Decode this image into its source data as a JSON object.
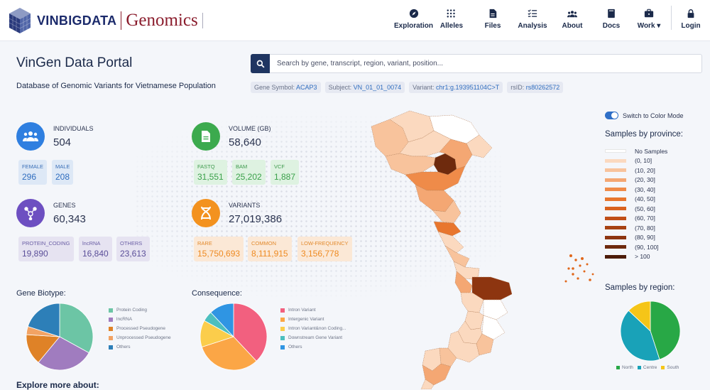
{
  "brand": {
    "vin": "VINBIGDATA",
    "genomics": "Genomics"
  },
  "nav": [
    {
      "label": "Exploration",
      "icon": "compass-icon"
    },
    {
      "label": "Alleles",
      "icon": "dots-grid-icon"
    },
    {
      "label": "Files",
      "icon": "file-icon"
    },
    {
      "label": "Analysis",
      "icon": "checklist-icon"
    },
    {
      "label": "About",
      "icon": "users-icon"
    },
    {
      "label": "Docs",
      "icon": "book-icon"
    },
    {
      "label": "Work ▾",
      "icon": "briefcase-icon"
    },
    {
      "label": "Login",
      "icon": "lock-icon"
    }
  ],
  "page": {
    "title": "VinGen Data Portal",
    "subtitle": "Database of Genomic Variants for Vietnamese Population"
  },
  "search": {
    "placeholder": "Search by gene, transcript, region, variant, position..."
  },
  "examples": [
    {
      "label": "Gene Symbol:",
      "value": "ACAP3"
    },
    {
      "label": "Subject:",
      "value": "VN_01_01_0074"
    },
    {
      "label": "Variant:",
      "value": "chr1:g.193951104C>T"
    },
    {
      "label": "rsID:",
      "value": "rs80262572"
    }
  ],
  "stats": {
    "individuals": {
      "label": "INDIVIDUALS",
      "value": "504",
      "female_label": "FEMALE",
      "female": "296",
      "male_label": "MALE",
      "male": "208"
    },
    "volume": {
      "label": "VOLUME (GB)",
      "value": "58,640",
      "fastq_label": "FASTQ",
      "fastq": "31,551",
      "bam_label": "BAM",
      "bam": "25,202",
      "vcf_label": "VCF",
      "vcf": "1,887"
    },
    "genes": {
      "label": "GENES",
      "value": "60,343",
      "pc_label": "PROTEIN_CODING",
      "pc": "19,890",
      "lnc_label": "lncRNA",
      "lnc": "16,840",
      "oth_label": "OTHERS",
      "oth": "23,613"
    },
    "variants": {
      "label": "VARIANTS",
      "value": "27,019,386",
      "rare_label": "RARE",
      "rare": "15,750,693",
      "common_label": "COMMON",
      "common": "8,111,915",
      "low_label": "LOW-FREQUENCY",
      "low": "3,156,778"
    }
  },
  "sections": {
    "biotype": "Gene Biotype:",
    "consequence": "Consequence:",
    "explore": "Explore more about:"
  },
  "map": {
    "toggle_label": "Switch to Color Mode",
    "province_title": "Samples by province:",
    "region_title": "Samples by region:"
  },
  "province_legend": [
    {
      "label": "No Samples",
      "color": "#ffffff"
    },
    {
      "label": "(0, 10]",
      "color": "#fbd9bf"
    },
    {
      "label": "(10, 20]",
      "color": "#f8c39c"
    },
    {
      "label": "(20, 30]",
      "color": "#f4a773"
    },
    {
      "label": "(30, 40]",
      "color": "#ef8b49"
    },
    {
      "label": "(40, 50]",
      "color": "#e8762e"
    },
    {
      "label": "(50, 60]",
      "color": "#d9621f"
    },
    {
      "label": "(60, 70]",
      "color": "#c04f18"
    },
    {
      "label": "(70, 80]",
      "color": "#a74213"
    },
    {
      "label": "(80, 90]",
      "color": "#8d3510"
    },
    {
      "label": "(90, 100]",
      "color": "#6e2a0d"
    },
    {
      "label": "> 100",
      "color": "#4c1c08"
    }
  ],
  "chart_data": [
    {
      "type": "pie",
      "title": "Gene Biotype:",
      "labels": [
        "Protein Coding",
        "lncRNA",
        "Processed Pseudogene",
        "Unprocessed Pseudogene",
        "Others"
      ],
      "values": [
        33,
        28,
        15,
        4,
        20
      ],
      "colors": [
        "#6cc5a5",
        "#a07cbf",
        "#df8227",
        "#f2a364",
        "#2d7fb8"
      ],
      "legend": "right"
    },
    {
      "type": "pie",
      "title": "Consequence:",
      "labels": [
        "Intron Variant",
        "Intergenic Variant",
        "Intron Variant&non Coding...",
        "Downstream Gene Variant",
        "Others"
      ],
      "values": [
        38,
        32,
        13,
        5,
        12
      ],
      "colors": [
        "#f2607f",
        "#fba646",
        "#fbcd4b",
        "#4cbfbf",
        "#2f95e3"
      ],
      "legend": "right"
    },
    {
      "type": "pie",
      "title": "Samples by region:",
      "labels": [
        "North",
        "Centre",
        "South"
      ],
      "values": [
        45,
        42,
        13
      ],
      "colors": [
        "#28a846",
        "#19a2b8",
        "#f5c518"
      ],
      "legend": "bottom"
    }
  ]
}
